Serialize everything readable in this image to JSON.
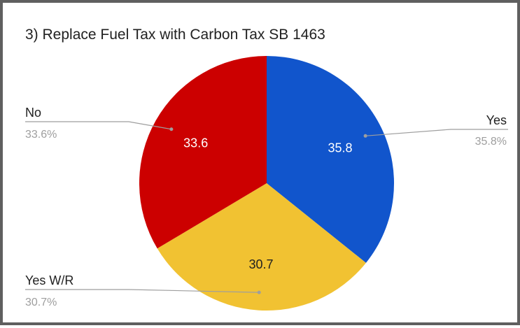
{
  "chart_data": {
    "type": "pie",
    "title": "3) Replace Fuel Tax with Carbon Tax SB 1463",
    "slices": [
      {
        "label": "Yes",
        "value": 35.8,
        "value_label": "35.8",
        "percent_label": "35.8%",
        "color": "#1155cc",
        "text_color": "#ffffff"
      },
      {
        "label": "Yes W/R",
        "value": 30.7,
        "value_label": "30.7",
        "percent_label": "30.7%",
        "color": "#f1c232",
        "text_color": "#212121"
      },
      {
        "label": "No",
        "value": 33.6,
        "value_label": "33.6",
        "percent_label": "33.6%",
        "color": "#cc0000",
        "text_color": "#ffffff"
      }
    ],
    "legend": "labels-outside",
    "start_angle": "top, clockwise"
  }
}
